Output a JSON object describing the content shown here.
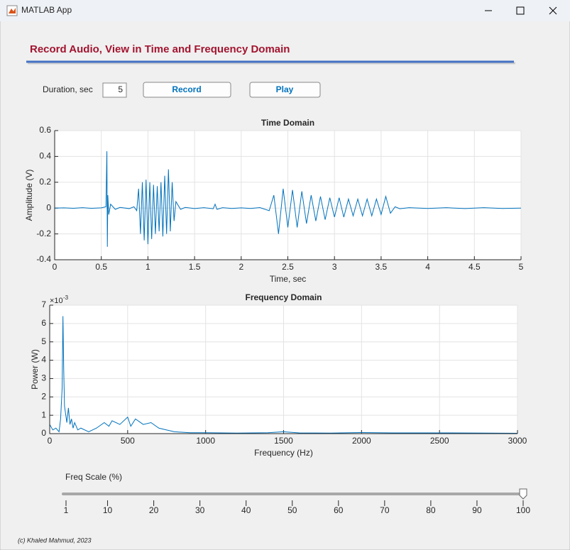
{
  "window": {
    "title": "MATLAB App"
  },
  "header": {
    "title": "Record Audio, View in Time and Frequency Domain"
  },
  "controls": {
    "duration_label": "Duration, sec",
    "duration_value": "5",
    "record": "Record",
    "play": "Play"
  },
  "chart_data": [
    {
      "type": "line",
      "title": "Time Domain",
      "xlabel": "Time, sec",
      "ylabel": "Amplitude (V)",
      "color": "#0072bd",
      "grid": true,
      "xlim": [
        0,
        5
      ],
      "xticks": [
        0,
        0.5,
        1,
        1.5,
        2,
        2.5,
        3,
        3.5,
        4,
        4.5,
        5
      ],
      "ylim": [
        -0.4,
        0.6
      ],
      "yticks": [
        -0.4,
        -0.2,
        0,
        0.2,
        0.4,
        0.6
      ],
      "x": [
        0,
        0.1,
        0.2,
        0.3,
        0.4,
        0.5,
        0.55,
        0.56,
        0.565,
        0.57,
        0.58,
        0.6,
        0.65,
        0.7,
        0.8,
        0.85,
        0.88,
        0.9,
        0.92,
        0.94,
        0.96,
        0.98,
        1.0,
        1.02,
        1.04,
        1.06,
        1.08,
        1.1,
        1.12,
        1.14,
        1.16,
        1.18,
        1.2,
        1.22,
        1.24,
        1.26,
        1.28,
        1.3,
        1.35,
        1.4,
        1.5,
        1.6,
        1.7,
        1.72,
        1.74,
        1.8,
        1.9,
        2.0,
        2.1,
        2.2,
        2.3,
        2.35,
        2.4,
        2.45,
        2.5,
        2.55,
        2.6,
        2.65,
        2.7,
        2.75,
        2.8,
        2.85,
        2.9,
        2.95,
        3.0,
        3.05,
        3.1,
        3.15,
        3.2,
        3.25,
        3.3,
        3.35,
        3.4,
        3.45,
        3.5,
        3.55,
        3.6,
        3.65,
        3.7,
        3.8,
        4.0,
        4.2,
        4.4,
        4.6,
        4.8,
        5.0
      ],
      "values": [
        0,
        0.002,
        -0.002,
        0.003,
        -0.002,
        0.002,
        0.01,
        0.44,
        -0.3,
        0.1,
        -0.05,
        0.03,
        -0.01,
        0.005,
        -0.004,
        0.01,
        -0.02,
        0.15,
        -0.2,
        0.2,
        -0.25,
        0.22,
        -0.28,
        0.2,
        -0.24,
        0.18,
        -0.2,
        0.17,
        -0.18,
        0.2,
        -0.22,
        0.25,
        -0.2,
        0.3,
        -0.18,
        0.2,
        -0.1,
        0.05,
        -0.01,
        0.005,
        -0.004,
        0.003,
        -0.005,
        0.03,
        -0.01,
        0.003,
        -0.003,
        0.002,
        -0.003,
        0.004,
        -0.02,
        0.1,
        -0.2,
        0.15,
        -0.15,
        0.14,
        -0.15,
        0.13,
        -0.12,
        0.1,
        -0.1,
        0.09,
        -0.09,
        0.08,
        -0.07,
        0.08,
        -0.07,
        0.07,
        -0.06,
        0.07,
        -0.06,
        0.07,
        -0.06,
        0.07,
        -0.05,
        0.09,
        -0.04,
        0.01,
        -0.005,
        0.003,
        -0.003,
        0.003,
        -0.004,
        0.003,
        -0.003,
        0
      ]
    },
    {
      "type": "line",
      "title": "Frequency Domain",
      "xlabel": "Frequency (Hz)",
      "ylabel": "Power (W)",
      "color": "#0072bd",
      "grid": true,
      "y_multiplier": {
        "base": "×10",
        "exponent": "-3"
      },
      "xlim": [
        0,
        3000
      ],
      "xticks": [
        0,
        500,
        1000,
        1500,
        2000,
        2500,
        3000
      ],
      "ylim": [
        0,
        7
      ],
      "yticks": [
        0,
        1,
        2,
        3,
        4,
        5,
        6,
        7
      ],
      "x": [
        0,
        20,
        40,
        60,
        70,
        80,
        85,
        90,
        95,
        100,
        110,
        120,
        130,
        140,
        150,
        160,
        180,
        200,
        250,
        300,
        350,
        380,
        400,
        450,
        500,
        520,
        550,
        600,
        650,
        700,
        750,
        800,
        900,
        1000,
        1200,
        1400,
        1500,
        1600,
        1800,
        2000,
        2200,
        2500,
        2800,
        3000
      ],
      "values": [
        0.5,
        0.2,
        0.3,
        0.1,
        0.8,
        2.5,
        6.4,
        3.5,
        1.5,
        1.2,
        0.6,
        1.4,
        0.5,
        0.8,
        0.3,
        0.6,
        0.2,
        0.3,
        0.1,
        0.3,
        0.6,
        0.4,
        0.7,
        0.5,
        0.9,
        0.4,
        0.8,
        0.5,
        0.6,
        0.3,
        0.2,
        0.1,
        0.05,
        0.05,
        0.03,
        0.05,
        0.1,
        0.04,
        0.03,
        0.06,
        0.04,
        0.04,
        0.03,
        0.02
      ]
    }
  ],
  "slider": {
    "label": "Freq Scale (%)",
    "lim": [
      1,
      100
    ],
    "ticks": [
      1,
      10,
      20,
      30,
      40,
      50,
      60,
      70,
      80,
      90,
      100
    ],
    "value": 100
  },
  "footer": "(c) Khaled Mahmud, 2023"
}
